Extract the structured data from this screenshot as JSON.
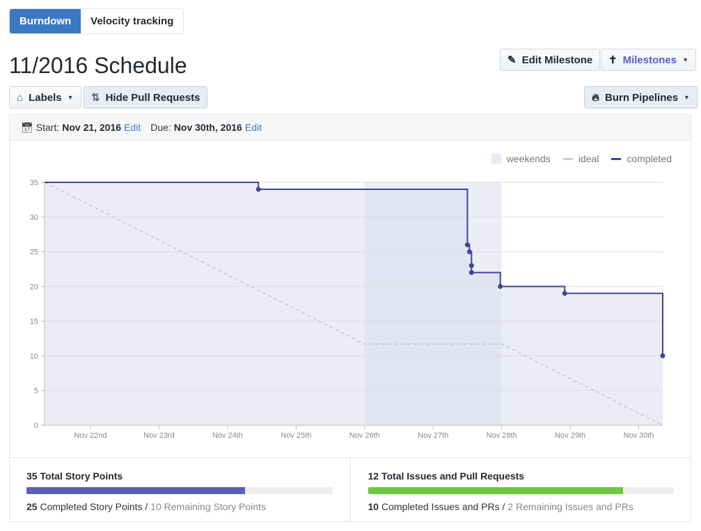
{
  "tabs": [
    {
      "label": "Burndown"
    },
    {
      "label": "Velocity tracking"
    }
  ],
  "title": "11/2016 Schedule",
  "toolbar": {
    "labels": "Labels",
    "hide_prs": "Hide Pull Requests",
    "edit_milestone": "Edit Milestone",
    "milestones": "Milestones",
    "burn_pipelines": "Burn Pipelines"
  },
  "dates": {
    "start_label": "Start:",
    "start": "Nov 21, 2016",
    "due_label": "Due:",
    "due": "Nov 30th, 2016",
    "edit": "Edit"
  },
  "colors": {
    "accent": "#3b78c4",
    "completed": "#3f4497",
    "ideal": "#c4c4cc",
    "area": "#ececf6",
    "weekend": "#e2e3ee",
    "points_bar": "#5b5fb8",
    "issues_bar": "#6cc644"
  },
  "chart_data": {
    "type": "line",
    "legend": [
      "weekends",
      "ideal",
      "completed"
    ],
    "legend_position": "top-right",
    "ylim": [
      0,
      35
    ],
    "yticks": [
      0,
      5,
      10,
      15,
      20,
      25,
      30,
      35
    ],
    "xlim": [
      21.33,
      30.35
    ],
    "xticks": [
      {
        "v": 22,
        "label": "Nov 22nd"
      },
      {
        "v": 23,
        "label": "Nov 23rd"
      },
      {
        "v": 24,
        "label": "Nov 24th"
      },
      {
        "v": 25,
        "label": "Nov 25th"
      },
      {
        "v": 26,
        "label": "Nov 26th"
      },
      {
        "v": 27,
        "label": "Nov 27th"
      },
      {
        "v": 28,
        "label": "Nov 28th"
      },
      {
        "v": 29,
        "label": "Nov 29th"
      },
      {
        "v": 30,
        "label": "Nov 30th"
      }
    ],
    "weekends": [
      [
        26,
        28
      ]
    ],
    "ideal": [
      [
        21.33,
        35
      ],
      [
        26,
        11.7
      ],
      [
        28,
        11.7
      ],
      [
        30.35,
        0
      ]
    ],
    "completed": [
      [
        21.33,
        35
      ],
      [
        24.45,
        34
      ],
      [
        27.5,
        26
      ],
      [
        27.53,
        25
      ],
      [
        27.56,
        23
      ],
      [
        27.56,
        22
      ],
      [
        27.98,
        20
      ],
      [
        28.92,
        19
      ],
      [
        30.35,
        10
      ]
    ]
  },
  "stats": {
    "points": {
      "title": "35 Total Story Points",
      "completed_n": "25",
      "completed_text": "Completed Story Points /",
      "remaining": "10 Remaining Story Points",
      "fraction": 0.714
    },
    "issues": {
      "title": "12 Total Issues and Pull Requests",
      "completed_n": "10",
      "completed_text": "Completed Issues and PRs /",
      "remaining": "2 Remaining Issues and PRs",
      "fraction": 0.833
    }
  }
}
